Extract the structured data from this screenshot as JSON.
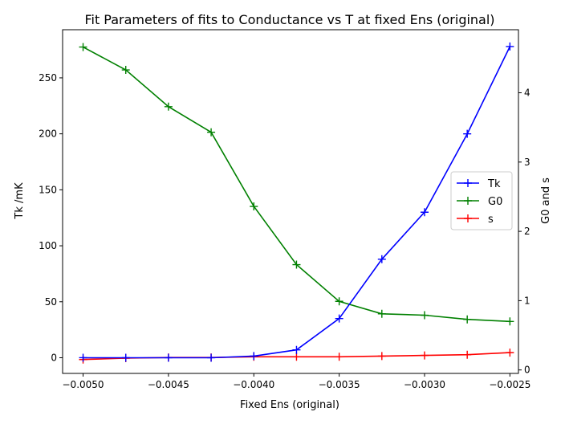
{
  "chart_data": {
    "type": "line",
    "title": "Fit Parameters of fits to Conductance vs T at fixed Ens (original)",
    "xlabel": "Fixed Ens (original)",
    "ylabel_left": "Tk /mK",
    "ylabel_right": "G0 and s",
    "xlim": [
      -0.00512,
      -0.00245
    ],
    "ylim_left": [
      -14,
      293
    ],
    "ylim_right": [
      -0.05,
      4.91
    ],
    "x_ticks": [
      -0.005,
      -0.0045,
      -0.004,
      -0.0035,
      -0.003,
      -0.0025
    ],
    "x_tick_labels": [
      "−0.0050",
      "−0.0045",
      "−0.0040",
      "−0.0035",
      "−0.0030",
      "−0.0025"
    ],
    "y_left_ticks": [
      0,
      50,
      100,
      150,
      200,
      250
    ],
    "y_left_tick_labels": [
      "0",
      "50",
      "100",
      "150",
      "200",
      "250"
    ],
    "y_right_ticks": [
      0,
      1,
      2,
      3,
      4
    ],
    "y_right_tick_labels": [
      "0",
      "1",
      "2",
      "3",
      "4"
    ],
    "x": [
      -0.005,
      -0.00475,
      -0.0045,
      -0.00425,
      -0.004,
      -0.00375,
      -0.0035,
      -0.00325,
      -0.003,
      -0.00275,
      -0.0025
    ],
    "series": [
      {
        "name": "Tk",
        "axis": "left",
        "color": "#0000ff",
        "values": [
          0,
          0,
          0,
          0,
          1.5,
          7,
          35,
          88,
          130,
          200,
          278
        ]
      },
      {
        "name": "G0",
        "axis": "right",
        "color": "#008000",
        "values": [
          4.66,
          4.33,
          3.8,
          3.43,
          2.36,
          1.52,
          0.99,
          0.81,
          0.79,
          0.73,
          0.7
        ]
      },
      {
        "name": "s",
        "axis": "right",
        "color": "#ff0000",
        "values": [
          0.15,
          0.17,
          0.18,
          0.18,
          0.19,
          0.19,
          0.19,
          0.2,
          0.21,
          0.22,
          0.25
        ]
      }
    ],
    "legend_position": "center-right",
    "marker": "plus",
    "grid": false
  }
}
